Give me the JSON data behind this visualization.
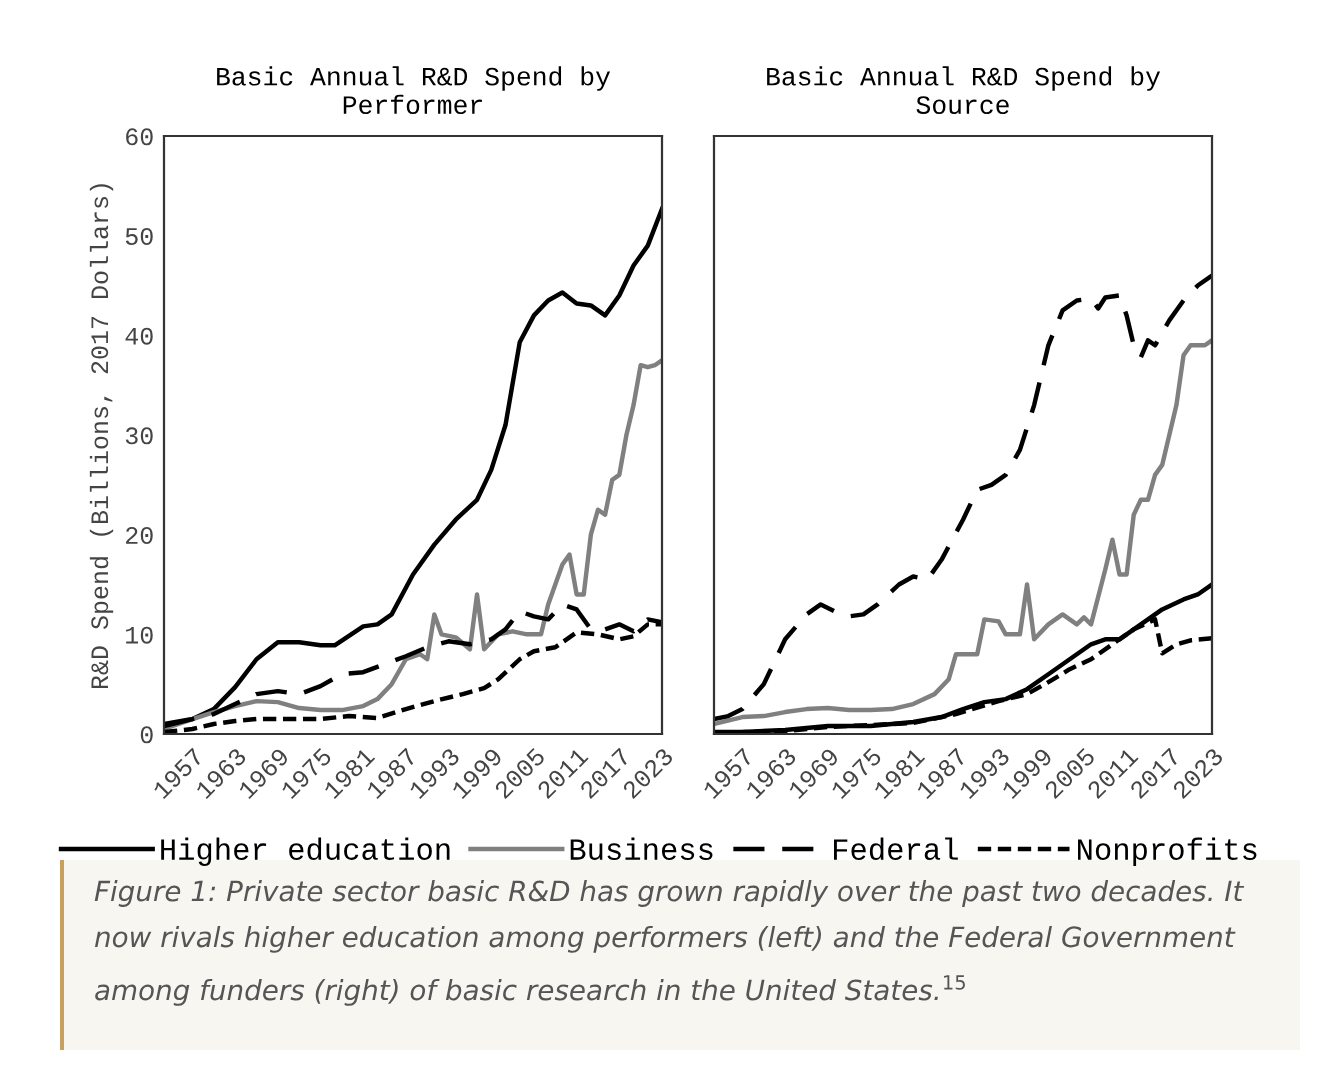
{
  "chart_data": [
    {
      "type": "line",
      "title": "Basic Annual R&D Spend by\nPerformer",
      "ylabel": "R&D Spend (Billions, 2017 Dollars)",
      "xlim": [
        1953,
        2023
      ],
      "xticks": [
        1957,
        1963,
        1969,
        1975,
        1981,
        1987,
        1993,
        1999,
        2005,
        2011,
        2017,
        2023
      ],
      "ylim": [
        0,
        60
      ],
      "yticks": [
        0,
        10,
        20,
        30,
        40,
        50,
        60
      ],
      "grid": false,
      "legend": "bottom",
      "marker": "none",
      "series": [
        {
          "name": "Higher education",
          "color": "#000000",
          "line_style": "solid",
          "x": [
            1953,
            1957,
            1960,
            1963,
            1966,
            1969,
            1972,
            1975,
            1977,
            1981,
            1983,
            1985,
            1988,
            1991,
            1994,
            1997,
            1999,
            2001,
            2003,
            2005,
            2007,
            2009,
            2011,
            2013,
            2015,
            2017,
            2019,
            2021,
            2023
          ],
          "values": [
            1.0,
            1.5,
            2.5,
            4.7,
            7.5,
            9.2,
            9.2,
            8.9,
            8.9,
            10.8,
            11.0,
            12.0,
            16,
            19,
            21.5,
            23.5,
            26.5,
            31,
            39.3,
            42,
            43.5,
            44.3,
            43.2,
            43,
            42,
            44,
            47,
            49,
            52.7
          ]
        },
        {
          "name": "Business",
          "color": "#808080",
          "line_style": "solid",
          "x": [
            1953,
            1957,
            1960,
            1963,
            1966,
            1969,
            1972,
            1975,
            1978,
            1981,
            1983,
            1985,
            1987,
            1989,
            1990,
            1991,
            1992,
            1994,
            1996,
            1997,
            1998,
            2000,
            2002,
            2004,
            2006,
            2007,
            2009,
            2010,
            2011,
            2012,
            2013,
            2014,
            2015,
            2016,
            2017,
            2018,
            2019,
            2020,
            2021,
            2022,
            2023
          ],
          "values": [
            0.5,
            1.5,
            2.2,
            2.8,
            3.3,
            3.2,
            2.6,
            2.4,
            2.4,
            2.8,
            3.5,
            5,
            7.5,
            8,
            7.5,
            12,
            10,
            9.7,
            8.5,
            14,
            8.5,
            10,
            10.3,
            10,
            10,
            13,
            17,
            18,
            14,
            14,
            20,
            22.5,
            22,
            25.5,
            26,
            30,
            33,
            37,
            36.8,
            37,
            37.5
          ]
        },
        {
          "name": "Federal",
          "color": "#000000",
          "line_style": "dashed",
          "x": [
            1953,
            1957,
            1960,
            1963,
            1966,
            1969,
            1972,
            1975,
            1978,
            1981,
            1984,
            1987,
            1990,
            1993,
            1996,
            1999,
            2001,
            2003,
            2005,
            2007,
            2009,
            2011,
            2013,
            2015,
            2017,
            2019,
            2021,
            2023
          ],
          "values": [
            0.8,
            1.5,
            2.0,
            3.0,
            4.0,
            4.3,
            4.0,
            4.8,
            6,
            6.2,
            7,
            7.8,
            8.7,
            9.3,
            9,
            9.5,
            10.5,
            12.3,
            11.8,
            11.5,
            13,
            12.5,
            10.5,
            10.5,
            11,
            10.3,
            11.5,
            11.2
          ]
        },
        {
          "name": "Nonprofits",
          "color": "#000000",
          "line_style": "dotted",
          "x": [
            1953,
            1957,
            1960,
            1963,
            1966,
            1969,
            1975,
            1979,
            1983,
            1987,
            1991,
            1995,
            1998,
            2000,
            2003,
            2005,
            2008,
            2011,
            2014,
            2017,
            2019,
            2021,
            2023
          ],
          "values": [
            0.2,
            0.5,
            1.0,
            1.3,
            1.5,
            1.5,
            1.5,
            1.8,
            1.6,
            2.5,
            3.3,
            4.0,
            4.6,
            5.5,
            7.5,
            8.3,
            8.7,
            10.2,
            10.0,
            9.5,
            9.8,
            11,
            11
          ]
        }
      ],
      "annotations": [
        "Figure 1: Private sector basic R&D has grown rapidly over the past two decades. It now rivals higher education among performers (left) and the Federal Government among funders (right) of basic research in the United States.$^{15}$"
      ]
    },
    {
      "type": "line",
      "title": "Basic Annual R&D Spend by\nSource",
      "xlim": [
        1953,
        2023
      ],
      "xticks": [
        1957,
        1963,
        1969,
        1975,
        1981,
        1987,
        1993,
        1999,
        2005,
        2011,
        2017,
        2023
      ],
      "ylim": [
        0,
        60
      ],
      "yticks": [
        0,
        10,
        20,
        30,
        40,
        50,
        60
      ],
      "grid": false,
      "tick_labels": "x",
      "marker": "none",
      "series": [
        {
          "color": "#000000",
          "line_style": "solid",
          "x": [
            1953,
            1957,
            1963,
            1969,
            1975,
            1981,
            1985,
            1988,
            1991,
            1994,
            1997,
            2000,
            2003,
            2006,
            2008,
            2010,
            2013,
            2016,
            2019,
            2021,
            2023
          ],
          "values": [
            0.2,
            0.2,
            0.4,
            0.8,
            0.8,
            1.2,
            1.7,
            2.5,
            3.2,
            3.5,
            4.5,
            6,
            7.5,
            9,
            9.5,
            9.5,
            11,
            12.5,
            13.5,
            14,
            15
          ]
        },
        {
          "color": "#808080",
          "line_style": "solid",
          "x": [
            1953,
            1957,
            1960,
            1963,
            1966,
            1969,
            1972,
            1975,
            1978,
            1981,
            1984,
            1986,
            1987,
            1989,
            1990,
            1991,
            1993,
            1994,
            1996,
            1997,
            1998,
            2000,
            2002,
            2003,
            2004,
            2005,
            2006,
            2008,
            2009,
            2010,
            2011,
            2012,
            2013,
            2014,
            2015,
            2016,
            2018,
            2019,
            2020,
            2022,
            2023
          ],
          "values": [
            1.0,
            1.7,
            1.8,
            2.2,
            2.5,
            2.6,
            2.4,
            2.4,
            2.5,
            3.0,
            4.0,
            5.5,
            8,
            8,
            8,
            11.5,
            11.3,
            10,
            10,
            15,
            9.5,
            11,
            12,
            11.5,
            11,
            11.7,
            11,
            16.5,
            19.5,
            16,
            16,
            22,
            23.5,
            23.5,
            26,
            27,
            33,
            38,
            39,
            39,
            39.5
          ]
        },
        {
          "color": "#000000",
          "line_style": "dashed",
          "x": [
            1953,
            1955,
            1957,
            1960,
            1963,
            1966,
            1968,
            1970,
            1972,
            1974,
            1976,
            1979,
            1981,
            1983,
            1985,
            1988,
            1990,
            1992,
            1994,
            1996,
            1998,
            2000,
            2002,
            2004,
            2006,
            2007,
            2008,
            2010,
            2011,
            2012,
            2013,
            2014,
            2015,
            2017,
            2019,
            2021,
            2023
          ],
          "values": [
            1.5,
            1.8,
            2.5,
            5,
            9.5,
            12,
            13,
            12.3,
            11.8,
            12,
            13,
            15,
            15.8,
            15.5,
            17.5,
            21.5,
            24.5,
            25,
            26,
            28.5,
            33,
            39,
            42.5,
            43.5,
            43.7,
            42.7,
            43.8,
            44,
            42,
            39,
            37.8,
            39.5,
            39,
            41.5,
            43.5,
            45,
            46
          ]
        },
        {
          "color": "#000000",
          "line_style": "dotted",
          "x": [
            1953,
            1963,
            1969,
            1975,
            1981,
            1987,
            1993,
            1997,
            2000,
            2003,
            2006,
            2009,
            2012,
            2015,
            2016,
            2018,
            2020,
            2023
          ],
          "values": [
            0.1,
            0.3,
            0.7,
            0.9,
            1.1,
            2.0,
            3.3,
            4,
            5.2,
            6.5,
            7.5,
            9,
            10.5,
            11.5,
            8.1,
            9,
            9.4,
            9.6
          ]
        }
      ]
    }
  ]
}
